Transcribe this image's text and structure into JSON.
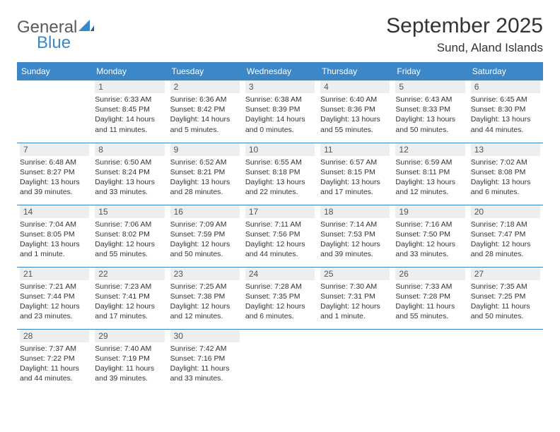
{
  "logo": {
    "general": "General",
    "blue": "Blue"
  },
  "title": "September 2025",
  "location": "Sund, Aland Islands",
  "colors": {
    "header_bg": "#3b87c8",
    "header_text": "#ffffff",
    "daynum_bg": "#eeeeee",
    "daynum_text": "#555555",
    "body_text": "#333333",
    "rule": "#3b87c8",
    "logo_gray": "#5a5a5a",
    "logo_blue": "#3b87c8"
  },
  "weekdays": [
    "Sunday",
    "Monday",
    "Tuesday",
    "Wednesday",
    "Thursday",
    "Friday",
    "Saturday"
  ],
  "weeks": [
    [
      null,
      {
        "n": "1",
        "sr": "Sunrise: 6:33 AM",
        "ss": "Sunset: 8:45 PM",
        "dl": "Daylight: 14 hours and 11 minutes."
      },
      {
        "n": "2",
        "sr": "Sunrise: 6:36 AM",
        "ss": "Sunset: 8:42 PM",
        "dl": "Daylight: 14 hours and 5 minutes."
      },
      {
        "n": "3",
        "sr": "Sunrise: 6:38 AM",
        "ss": "Sunset: 8:39 PM",
        "dl": "Daylight: 14 hours and 0 minutes."
      },
      {
        "n": "4",
        "sr": "Sunrise: 6:40 AM",
        "ss": "Sunset: 8:36 PM",
        "dl": "Daylight: 13 hours and 55 minutes."
      },
      {
        "n": "5",
        "sr": "Sunrise: 6:43 AM",
        "ss": "Sunset: 8:33 PM",
        "dl": "Daylight: 13 hours and 50 minutes."
      },
      {
        "n": "6",
        "sr": "Sunrise: 6:45 AM",
        "ss": "Sunset: 8:30 PM",
        "dl": "Daylight: 13 hours and 44 minutes."
      }
    ],
    [
      {
        "n": "7",
        "sr": "Sunrise: 6:48 AM",
        "ss": "Sunset: 8:27 PM",
        "dl": "Daylight: 13 hours and 39 minutes."
      },
      {
        "n": "8",
        "sr": "Sunrise: 6:50 AM",
        "ss": "Sunset: 8:24 PM",
        "dl": "Daylight: 13 hours and 33 minutes."
      },
      {
        "n": "9",
        "sr": "Sunrise: 6:52 AM",
        "ss": "Sunset: 8:21 PM",
        "dl": "Daylight: 13 hours and 28 minutes."
      },
      {
        "n": "10",
        "sr": "Sunrise: 6:55 AM",
        "ss": "Sunset: 8:18 PM",
        "dl": "Daylight: 13 hours and 22 minutes."
      },
      {
        "n": "11",
        "sr": "Sunrise: 6:57 AM",
        "ss": "Sunset: 8:15 PM",
        "dl": "Daylight: 13 hours and 17 minutes."
      },
      {
        "n": "12",
        "sr": "Sunrise: 6:59 AM",
        "ss": "Sunset: 8:11 PM",
        "dl": "Daylight: 13 hours and 12 minutes."
      },
      {
        "n": "13",
        "sr": "Sunrise: 7:02 AM",
        "ss": "Sunset: 8:08 PM",
        "dl": "Daylight: 13 hours and 6 minutes."
      }
    ],
    [
      {
        "n": "14",
        "sr": "Sunrise: 7:04 AM",
        "ss": "Sunset: 8:05 PM",
        "dl": "Daylight: 13 hours and 1 minute."
      },
      {
        "n": "15",
        "sr": "Sunrise: 7:06 AM",
        "ss": "Sunset: 8:02 PM",
        "dl": "Daylight: 12 hours and 55 minutes."
      },
      {
        "n": "16",
        "sr": "Sunrise: 7:09 AM",
        "ss": "Sunset: 7:59 PM",
        "dl": "Daylight: 12 hours and 50 minutes."
      },
      {
        "n": "17",
        "sr": "Sunrise: 7:11 AM",
        "ss": "Sunset: 7:56 PM",
        "dl": "Daylight: 12 hours and 44 minutes."
      },
      {
        "n": "18",
        "sr": "Sunrise: 7:14 AM",
        "ss": "Sunset: 7:53 PM",
        "dl": "Daylight: 12 hours and 39 minutes."
      },
      {
        "n": "19",
        "sr": "Sunrise: 7:16 AM",
        "ss": "Sunset: 7:50 PM",
        "dl": "Daylight: 12 hours and 33 minutes."
      },
      {
        "n": "20",
        "sr": "Sunrise: 7:18 AM",
        "ss": "Sunset: 7:47 PM",
        "dl": "Daylight: 12 hours and 28 minutes."
      }
    ],
    [
      {
        "n": "21",
        "sr": "Sunrise: 7:21 AM",
        "ss": "Sunset: 7:44 PM",
        "dl": "Daylight: 12 hours and 23 minutes."
      },
      {
        "n": "22",
        "sr": "Sunrise: 7:23 AM",
        "ss": "Sunset: 7:41 PM",
        "dl": "Daylight: 12 hours and 17 minutes."
      },
      {
        "n": "23",
        "sr": "Sunrise: 7:25 AM",
        "ss": "Sunset: 7:38 PM",
        "dl": "Daylight: 12 hours and 12 minutes."
      },
      {
        "n": "24",
        "sr": "Sunrise: 7:28 AM",
        "ss": "Sunset: 7:35 PM",
        "dl": "Daylight: 12 hours and 6 minutes."
      },
      {
        "n": "25",
        "sr": "Sunrise: 7:30 AM",
        "ss": "Sunset: 7:31 PM",
        "dl": "Daylight: 12 hours and 1 minute."
      },
      {
        "n": "26",
        "sr": "Sunrise: 7:33 AM",
        "ss": "Sunset: 7:28 PM",
        "dl": "Daylight: 11 hours and 55 minutes."
      },
      {
        "n": "27",
        "sr": "Sunrise: 7:35 AM",
        "ss": "Sunset: 7:25 PM",
        "dl": "Daylight: 11 hours and 50 minutes."
      }
    ],
    [
      {
        "n": "28",
        "sr": "Sunrise: 7:37 AM",
        "ss": "Sunset: 7:22 PM",
        "dl": "Daylight: 11 hours and 44 minutes."
      },
      {
        "n": "29",
        "sr": "Sunrise: 7:40 AM",
        "ss": "Sunset: 7:19 PM",
        "dl": "Daylight: 11 hours and 39 minutes."
      },
      {
        "n": "30",
        "sr": "Sunrise: 7:42 AM",
        "ss": "Sunset: 7:16 PM",
        "dl": "Daylight: 11 hours and 33 minutes."
      },
      null,
      null,
      null,
      null
    ]
  ]
}
